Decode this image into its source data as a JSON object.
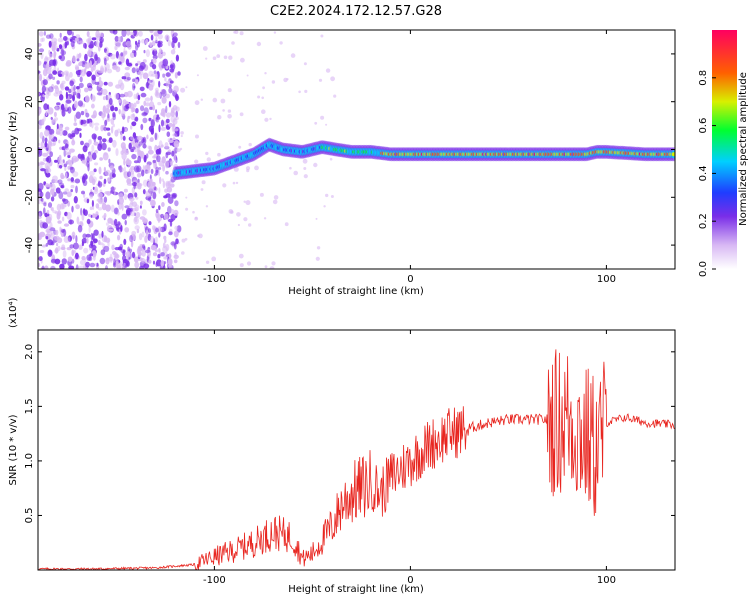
{
  "figure_title": "C2E2.2024.172.12.57.G28",
  "colors": {
    "snr_line": "#e8251f",
    "colormap": [
      "#ffffff",
      "#d8b8f4",
      "#7a2ee8",
      "#1f3dff",
      "#00d0ff",
      "#00ff30",
      "#d8f000",
      "#ff6000",
      "#ff0060"
    ]
  },
  "chart_data": [
    {
      "type": "heatmap",
      "xlabel": "Height of straight line (km)",
      "ylabel": "Frequency (Hz)",
      "xlim": [
        -190,
        135
      ],
      "ylim": [
        -50,
        50
      ],
      "xticks": [
        -100,
        0,
        100
      ],
      "yticks": [
        -40,
        -20,
        0,
        20,
        40
      ],
      "colorbar": {
        "label": "Normalized spectral amplitude",
        "range": [
          0,
          1
        ],
        "ticks": [
          0.0,
          0.2,
          0.4,
          0.6,
          0.8
        ]
      },
      "ridge": {
        "description_points_x": [
          -120,
          -110,
          -100,
          -90,
          -80,
          -72,
          -65,
          -55,
          -45,
          -38,
          -30,
          -20,
          -10,
          0,
          10,
          20,
          40,
          60,
          80,
          90,
          95,
          100,
          120,
          135
        ],
        "description_points_y": [
          -10,
          -9,
          -8,
          -5,
          -2,
          2,
          0,
          -1,
          1,
          0,
          -1,
          -1,
          -2,
          -2,
          -2,
          -2,
          -2,
          -2,
          -2,
          -2,
          -1,
          -1,
          -2,
          -2
        ]
      }
    },
    {
      "type": "line",
      "xlabel": "Height of straight line (km)",
      "ylabel": "SNR (10 * v/v)",
      "y_multiplier": "(x10⁴)",
      "xlim": [
        -190,
        135
      ],
      "ylim": [
        0,
        2.2
      ],
      "xticks": [
        -100,
        0,
        100
      ],
      "yticks": [
        0.5,
        1.0,
        1.5,
        2.0
      ],
      "series": [
        {
          "x": [
            -190,
            -160,
            -130,
            -110,
            -100,
            -90,
            -80,
            -70,
            -60,
            -55,
            -50,
            -40,
            -35,
            -30,
            -25,
            -20,
            -15,
            -10,
            0,
            10,
            20,
            30,
            40,
            50,
            60,
            70,
            75,
            80,
            85,
            90,
            95,
            100,
            110,
            120,
            135
          ],
          "y": [
            0.01,
            0.01,
            0.02,
            0.05,
            0.12,
            0.18,
            0.25,
            0.35,
            0.3,
            0.1,
            0.15,
            0.4,
            0.6,
            0.7,
            0.75,
            0.8,
            0.7,
            0.85,
            1.0,
            1.15,
            1.25,
            1.3,
            1.35,
            1.38,
            1.38,
            1.38,
            1.35,
            1.4,
            1.3,
            1.2,
            1.1,
            1.35,
            1.4,
            1.35,
            1.33
          ]
        }
      ]
    }
  ]
}
